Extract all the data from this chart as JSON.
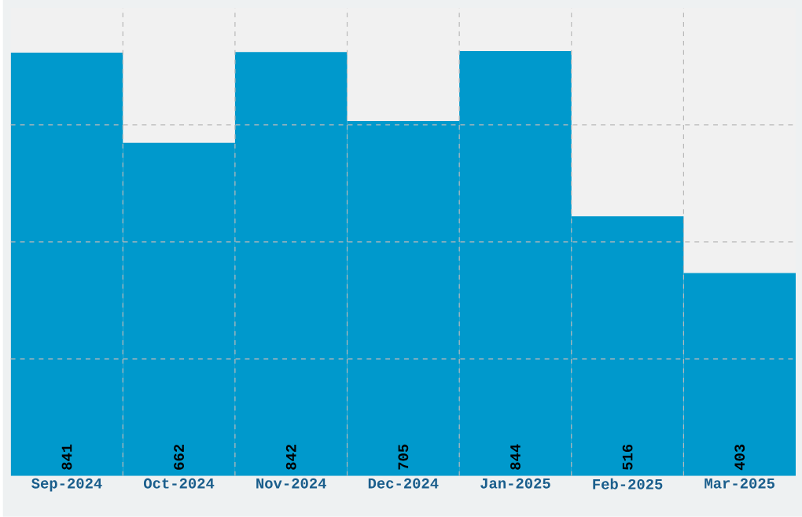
{
  "chart_data": {
    "type": "bar",
    "categories": [
      "Sep-2024",
      "Oct-2024",
      "Nov-2024",
      "Dec-2024",
      "Jan-2025",
      "Feb-2025",
      "Mar-2025"
    ],
    "values": [
      841,
      662,
      842,
      705,
      844,
      516,
      403
    ],
    "color": "#0099cc",
    "ylim": [
      0,
      930
    ],
    "yticks": [
      {
        "value": 232.5,
        "label": null
      },
      {
        "value": 465,
        "label": null
      },
      {
        "value": 697.5,
        "label": null
      }
    ],
    "tick_labels": "x",
    "grid": true,
    "data_labels": true
  }
}
